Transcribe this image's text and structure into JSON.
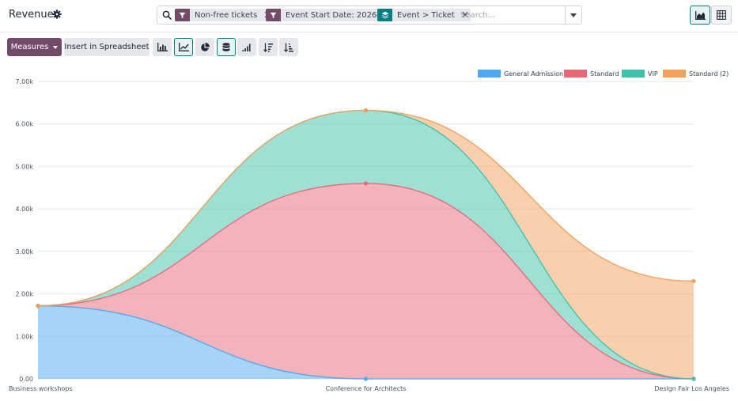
{
  "header": {
    "title": "Revenues",
    "icon": "gear-icon"
  },
  "search": {
    "facets": [
      {
        "icon": "filter-icon",
        "label": "Non-free tickets",
        "color": "#714b67"
      },
      {
        "icon": "filter-icon",
        "label": "Event Start Date: 2026",
        "color": "#714b67"
      },
      {
        "icon": "layers-icon",
        "label": "Event > Ticket",
        "color": "#017e84"
      }
    ],
    "placeholder": "Search..."
  },
  "views": {
    "graph": {
      "icon": "area-chart-icon",
      "active": true
    },
    "pivot": {
      "icon": "pivot-table-icon",
      "active": false
    }
  },
  "toolbar": {
    "measures_label": "Measures",
    "spreadsheet_label": "Insert in Spreadsheet",
    "tools": [
      {
        "name": "bar-chart-button",
        "icon": "bar-chart-icon",
        "active": false
      },
      {
        "name": "line-chart-button",
        "icon": "line-chart-icon",
        "active": true
      },
      {
        "name": "pie-chart-button",
        "icon": "pie-chart-icon",
        "active": false
      },
      {
        "name": "stacked-button",
        "icon": "database-icon",
        "active": true
      },
      {
        "name": "cumulative-button",
        "icon": "signal-icon",
        "active": false
      },
      {
        "name": "sort-descending-button",
        "icon": "sort-descending-icon",
        "active": false
      },
      {
        "name": "sort-ascending-button",
        "icon": "sort-ascending-icon",
        "active": false
      }
    ]
  },
  "chart_data": {
    "type": "area",
    "stacked": true,
    "categories": [
      "Business workshops",
      "Conference for Architects",
      "Design Fair Los Angeles"
    ],
    "y_ticks": [
      "0.00",
      "1.00k",
      "2.00k",
      "3.00k",
      "4.00k",
      "5.00k",
      "6.00k",
      "7.00k"
    ],
    "ylim": [
      0,
      7000
    ],
    "grid": true,
    "legend_position": "top-right",
    "series": [
      {
        "name": "General Admission",
        "values": [
          1720,
          0,
          0
        ],
        "color": "#4ea7f2"
      },
      {
        "name": "Standard",
        "values": [
          0,
          4600,
          0
        ],
        "color": "#e76877"
      },
      {
        "name": "VIP",
        "values": [
          0,
          1720,
          0
        ],
        "color": "#3fc1a9"
      },
      {
        "name": "Standard (2)",
        "values": [
          0,
          0,
          2300
        ],
        "color": "#f3a05b"
      }
    ]
  }
}
